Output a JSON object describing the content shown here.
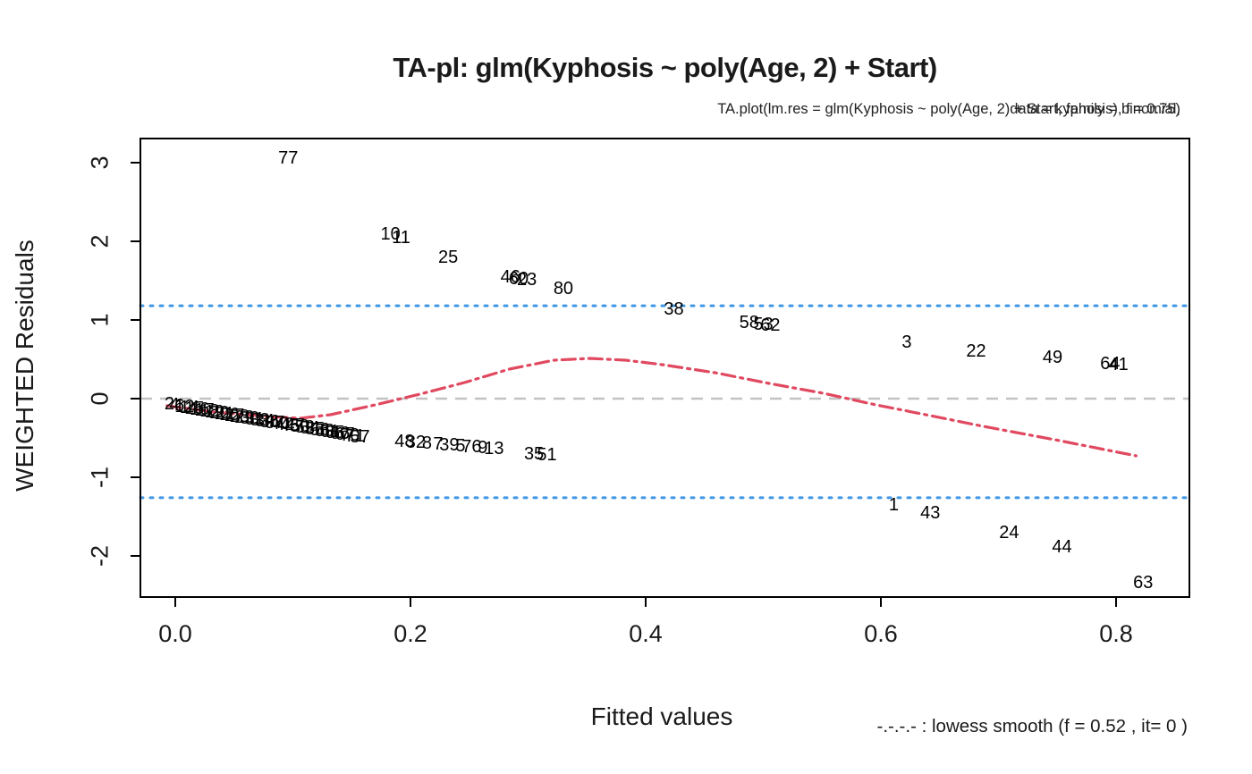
{
  "title": "TA-pl: glm(Kyphosis ~ poly(Age, 2) + Start)",
  "subtitle_line1": "TA.plot(lm.res = glm(Kyphosis ~ poly(Age, 2) + Start, family = binomial,",
  "subtitle_line2": "data = kyphosis), f = 0.75)",
  "legend": "-.-.-.- : lowess smooth (f = 0.52 , it= 0 )",
  "colors": {
    "box": "#000000",
    "zero_line": "#c2c2c2",
    "band_line": "#3f97e5",
    "lowess_line": "#e0495f",
    "text": "#1a1a1a"
  },
  "chart_data": {
    "type": "scatter",
    "title": "TA-pl: glm(Kyphosis ~ poly(Age, 2) + Start)",
    "xlabel": "Fitted values",
    "ylabel": "WEIGHTED Residuals",
    "xlim": [
      -0.03,
      0.862
    ],
    "ylim": [
      -2.52,
      3.31
    ],
    "x_ticks": [
      0.0,
      0.2,
      0.4,
      0.6,
      0.8
    ],
    "x_tick_labels": [
      "0.0",
      "0.2",
      "0.4",
      "0.6",
      "0.8"
    ],
    "y_ticks": [
      -2,
      -1,
      0,
      1,
      2,
      3
    ],
    "y_tick_labels": [
      "-2",
      "-1",
      "0",
      "1",
      "2",
      "3"
    ],
    "grid": false,
    "reference_lines": {
      "zero": 0,
      "upper_band": 1.18,
      "lower_band": -1.26
    },
    "points": [
      {
        "label": "77",
        "x": 0.096,
        "y": 3.06
      },
      {
        "label": "10",
        "x": 0.183,
        "y": 2.09
      },
      {
        "label": "11",
        "x": 0.192,
        "y": 2.05
      },
      {
        "label": "25",
        "x": 0.232,
        "y": 1.8
      },
      {
        "label": "46",
        "x": 0.285,
        "y": 1.55
      },
      {
        "label": "60",
        "x": 0.292,
        "y": 1.52
      },
      {
        "label": "23",
        "x": 0.299,
        "y": 1.51
      },
      {
        "label": "80",
        "x": 0.33,
        "y": 1.4
      },
      {
        "label": "38",
        "x": 0.424,
        "y": 1.14
      },
      {
        "label": "58",
        "x": 0.488,
        "y": 0.97
      },
      {
        "label": "53",
        "x": 0.5,
        "y": 0.94
      },
      {
        "label": "62",
        "x": 0.506,
        "y": 0.93
      },
      {
        "label": "3",
        "x": 0.622,
        "y": 0.72
      },
      {
        "label": "22",
        "x": 0.681,
        "y": 0.6
      },
      {
        "label": "49",
        "x": 0.746,
        "y": 0.52
      },
      {
        "label": "64",
        "x": 0.795,
        "y": 0.44
      },
      {
        "label": "41",
        "x": 0.802,
        "y": 0.43
      },
      {
        "label": "35",
        "x": 0.305,
        "y": -0.7
      },
      {
        "label": "51",
        "x": 0.316,
        "y": -0.716
      },
      {
        "label": "1",
        "x": 0.611,
        "y": -1.35
      },
      {
        "label": "43",
        "x": 0.642,
        "y": -1.45
      },
      {
        "label": "24",
        "x": 0.709,
        "y": -1.7
      },
      {
        "label": "44",
        "x": 0.754,
        "y": -1.89
      },
      {
        "label": "63",
        "x": 0.823,
        "y": -2.34
      }
    ],
    "clusters": [
      {
        "labels": [
          "2",
          "4",
          "6",
          "12",
          "14",
          "15",
          "16",
          "17",
          "18",
          "19",
          "20",
          "21",
          "26",
          "27",
          "28",
          "29",
          "30",
          "31",
          "33",
          "34",
          "36",
          "37",
          "40",
          "42",
          "45",
          "47",
          "50",
          "52",
          "54",
          "55",
          "56",
          "59",
          "61",
          "65",
          "66",
          "67",
          "70",
          "71",
          "57"
        ],
        "from": {
          "x": -0.005,
          "y": -0.07
        },
        "to": {
          "x": 0.157,
          "y": -0.49
        }
      },
      {
        "labels": [
          "48",
          "32",
          "8",
          "7",
          "39",
          "5",
          "76",
          "9",
          "13"
        ],
        "from": {
          "x": 0.195,
          "y": -0.545
        },
        "to": {
          "x": 0.271,
          "y": -0.636
        }
      }
    ],
    "lowess": [
      [
        -0.007,
        -0.09
      ],
      [
        0.033,
        -0.17
      ],
      [
        0.079,
        -0.227
      ],
      [
        0.106,
        -0.25
      ],
      [
        0.132,
        -0.205
      ],
      [
        0.17,
        -0.08
      ],
      [
        0.208,
        0.057
      ],
      [
        0.246,
        0.205
      ],
      [
        0.284,
        0.375
      ],
      [
        0.322,
        0.489
      ],
      [
        0.353,
        0.511
      ],
      [
        0.383,
        0.489
      ],
      [
        0.414,
        0.432
      ],
      [
        0.459,
        0.33
      ],
      [
        0.505,
        0.193
      ],
      [
        0.551,
        0.068
      ],
      [
        0.596,
        -0.08
      ],
      [
        0.642,
        -0.216
      ],
      [
        0.687,
        -0.352
      ],
      [
        0.748,
        -0.523
      ],
      [
        0.817,
        -0.727
      ]
    ]
  }
}
